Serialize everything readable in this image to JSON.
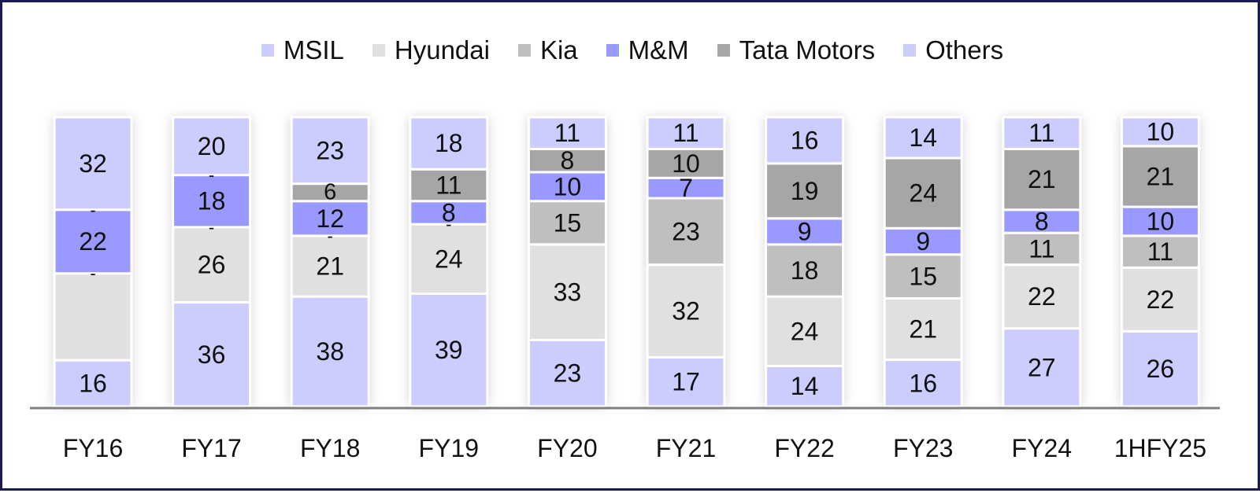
{
  "chart_data": {
    "type": "bar",
    "stacked": true,
    "categories": [
      "FY16",
      "FY17",
      "FY18",
      "FY19",
      "FY20",
      "FY21",
      "FY22",
      "FY23",
      "FY24",
      "1HFY25"
    ],
    "series": [
      {
        "name": "MSIL",
        "color": "#ccccff",
        "values": [
          16,
          36,
          38,
          39,
          23,
          17,
          14,
          16,
          27,
          26
        ],
        "labels": [
          "16",
          "36",
          "38",
          "39",
          "23",
          "17",
          "14",
          "16",
          "27",
          "26"
        ]
      },
      {
        "name": "Hyundai",
        "color": "#e0e0e0",
        "values": [
          30,
          26,
          21,
          24,
          33,
          32,
          24,
          21,
          22,
          22
        ],
        "labels": [
          "",
          "26",
          "21",
          "24",
          "33",
          "32",
          "24",
          "21",
          "22",
          "22"
        ]
      },
      {
        "name": "Kia",
        "color": "#bfbfbf",
        "values": [
          0,
          0,
          0,
          0,
          15,
          23,
          18,
          15,
          11,
          11
        ],
        "labels": [
          "-",
          "-",
          "-",
          "-",
          "15",
          "23",
          "18",
          "15",
          "11",
          "11"
        ]
      },
      {
        "name": "M&M",
        "color": "#9999ff",
        "values": [
          22,
          18,
          12,
          8,
          10,
          7,
          9,
          9,
          8,
          10
        ],
        "labels": [
          "22",
          "18",
          "12",
          "8",
          "10",
          "7",
          "9",
          "9",
          "8",
          "10"
        ]
      },
      {
        "name": "Tata Motors",
        "color": "#a6a6a6",
        "values": [
          0,
          0,
          6,
          11,
          8,
          10,
          19,
          24,
          21,
          21
        ],
        "labels": [
          "-",
          "-",
          "6",
          "11",
          "8",
          "10",
          "19",
          "24",
          "21",
          "21"
        ]
      },
      {
        "name": "Others",
        "color": "#ccccff",
        "values": [
          32,
          20,
          23,
          18,
          11,
          11,
          16,
          14,
          11,
          10
        ],
        "labels": [
          "32",
          "20",
          "23",
          "18",
          "11",
          "11",
          "16",
          "14",
          "11",
          "10"
        ]
      }
    ],
    "ylim": [
      0,
      100
    ],
    "legend": "top",
    "grid": false
  }
}
